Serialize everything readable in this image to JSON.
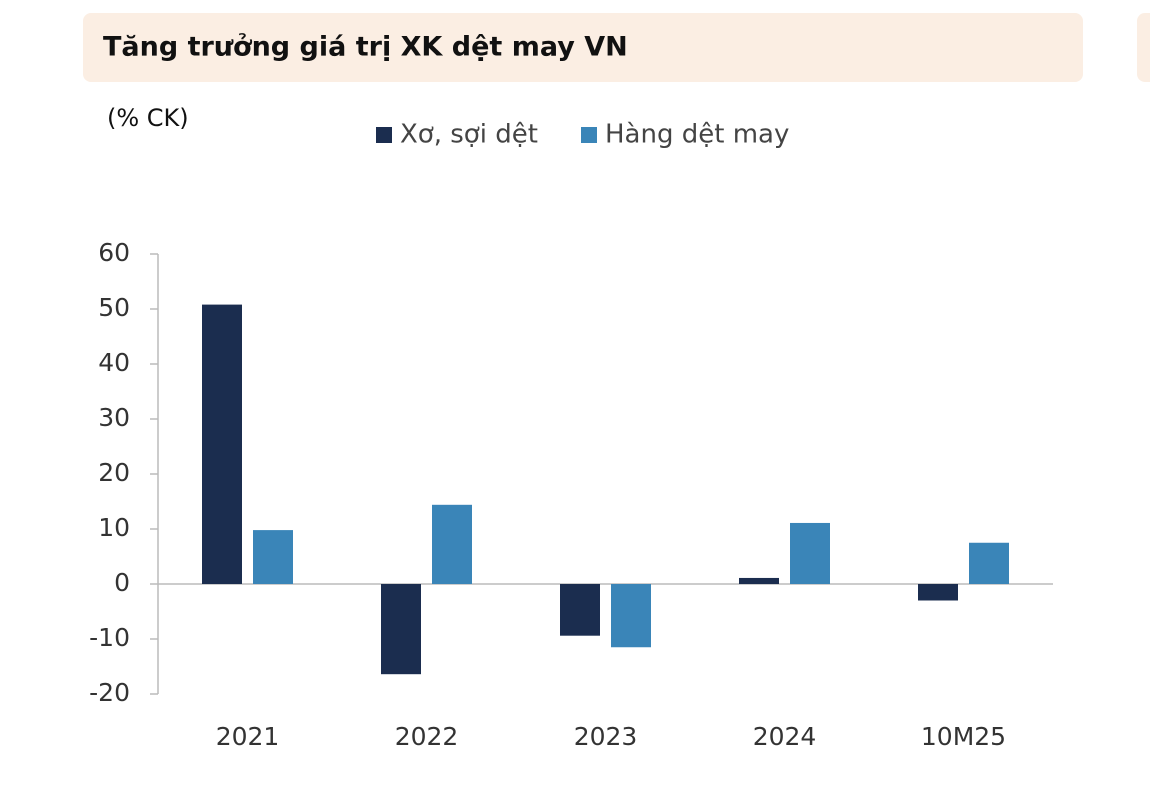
{
  "chart_data": {
    "type": "bar",
    "title": "Tăng trưởng giá trị XK dệt may VN",
    "y_axis_label": "(% CK)",
    "categories": [
      "2021",
      "2022",
      "2023",
      "2024",
      "10M25"
    ],
    "series": [
      {
        "name": "Xơ, sợi dệt",
        "color": "#1b2d4f",
        "values": [
          50.8,
          -16.4,
          -9.4,
          1.1,
          -3.0
        ]
      },
      {
        "name": "Hàng dệt may",
        "color": "#3a85b8",
        "values": [
          9.8,
          14.4,
          -11.5,
          11.1,
          7.5
        ]
      }
    ],
    "ylim": [
      -20,
      60
    ],
    "yticks": [
      -20,
      -10,
      0,
      10,
      20,
      30,
      40,
      50,
      60
    ],
    "grid": false
  }
}
